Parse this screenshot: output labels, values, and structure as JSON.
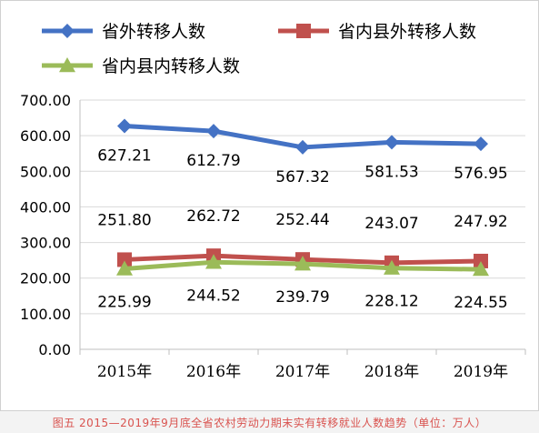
{
  "chart_data": {
    "type": "line",
    "categories": [
      "2015年",
      "2016年",
      "2017年",
      "2018年",
      "2019年"
    ],
    "series": [
      {
        "name": "省外转移人数",
        "values": [
          627.21,
          612.79,
          567.32,
          581.53,
          576.95
        ],
        "color": "#4472c4",
        "marker": "diamond"
      },
      {
        "name": "省内县外转移人数",
        "values": [
          251.8,
          262.72,
          252.44,
          243.07,
          247.92
        ],
        "color": "#c0504d",
        "marker": "square"
      },
      {
        "name": "省内县内转移人数",
        "values": [
          225.99,
          244.52,
          239.79,
          228.12,
          224.55
        ],
        "color": "#9bbb59",
        "marker": "triangle"
      }
    ],
    "ylim": [
      0,
      700
    ],
    "yticks": [
      0,
      100,
      200,
      300,
      400,
      500,
      600,
      700
    ],
    "ytick_labels": [
      "0.00",
      "100.00",
      "200.00",
      "300.00",
      "400.00",
      "500.00",
      "600.00",
      "700.00"
    ],
    "grid": true,
    "legend": "top"
  },
  "caption": "图五  2015—2019年9月底全省农村劳动力期末实有转移就业人数趋势（单位：万人）"
}
